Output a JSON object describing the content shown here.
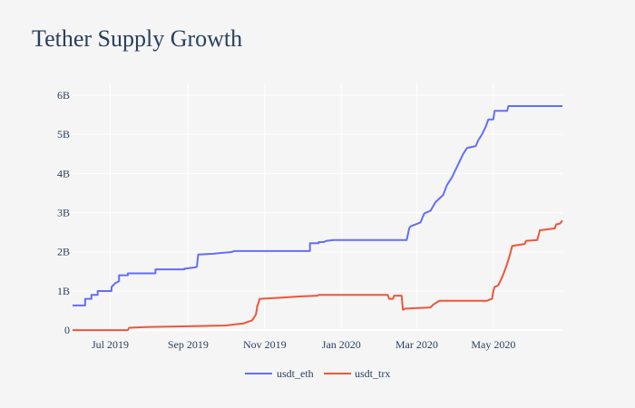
{
  "chart_data": {
    "type": "line",
    "title": "Tether Supply Growth",
    "xlabel": "",
    "ylabel": "",
    "ylim": [
      -0.02,
      6.3
    ],
    "grid": true,
    "legend_position": "bottom-center",
    "background_color": "#f5f5f5",
    "grid_color": "#ffffff",
    "text_color": "#2a3f5f",
    "y_ticks": [
      {
        "value": 0,
        "label": "0"
      },
      {
        "value": 1,
        "label": "1B"
      },
      {
        "value": 2,
        "label": "2B"
      },
      {
        "value": 3,
        "label": "3B"
      },
      {
        "value": 4,
        "label": "4B"
      },
      {
        "value": 5,
        "label": "5B"
      },
      {
        "value": 6,
        "label": "6B"
      }
    ],
    "x_domain": [
      "2019-06-01",
      "2020-06-25"
    ],
    "x_ticks": [
      {
        "date": "2019-07-01",
        "label": "Jul 2019"
      },
      {
        "date": "2019-09-01",
        "label": "Sep 2019"
      },
      {
        "date": "2019-11-01",
        "label": "Nov 2019"
      },
      {
        "date": "2020-01-01",
        "label": "Jan 2020"
      },
      {
        "date": "2020-03-01",
        "label": "Mar 2020"
      },
      {
        "date": "2020-05-01",
        "label": "May 2020"
      }
    ],
    "series": [
      {
        "name": "usdt_eth",
        "color": "#636efa",
        "points": [
          [
            "2019-06-01",
            0.63
          ],
          [
            "2019-06-11",
            0.63
          ],
          [
            "2019-06-11",
            0.8
          ],
          [
            "2019-06-16",
            0.8
          ],
          [
            "2019-06-16",
            0.9
          ],
          [
            "2019-06-21",
            0.9
          ],
          [
            "2019-06-21",
            1.0
          ],
          [
            "2019-07-02",
            1.0
          ],
          [
            "2019-07-02",
            1.1
          ],
          [
            "2019-07-05",
            1.2
          ],
          [
            "2019-07-08",
            1.25
          ],
          [
            "2019-07-08",
            1.4
          ],
          [
            "2019-07-15",
            1.4
          ],
          [
            "2019-07-15",
            1.45
          ],
          [
            "2019-08-06",
            1.45
          ],
          [
            "2019-08-06",
            1.55
          ],
          [
            "2019-08-29",
            1.55
          ],
          [
            "2019-08-29",
            1.57
          ],
          [
            "2019-09-06",
            1.6
          ],
          [
            "2019-09-08",
            1.62
          ],
          [
            "2019-09-09",
            1.93
          ],
          [
            "2019-09-21",
            1.95
          ],
          [
            "2019-09-27",
            1.97
          ],
          [
            "2019-10-05",
            1.99
          ],
          [
            "2019-10-08",
            2.02
          ],
          [
            "2019-12-07",
            2.02
          ],
          [
            "2019-12-07",
            2.22
          ],
          [
            "2019-12-14",
            2.22
          ],
          [
            "2019-12-14",
            2.25
          ],
          [
            "2019-12-18",
            2.25
          ],
          [
            "2019-12-20",
            2.28
          ],
          [
            "2019-12-26",
            2.3
          ],
          [
            "2020-02-22",
            2.3
          ],
          [
            "2020-02-24",
            2.6
          ],
          [
            "2020-02-25",
            2.65
          ],
          [
            "2020-02-29",
            2.7
          ],
          [
            "2020-03-04",
            2.75
          ],
          [
            "2020-03-07",
            2.98
          ],
          [
            "2020-03-12",
            3.05
          ],
          [
            "2020-03-16",
            3.27
          ],
          [
            "2020-03-22",
            3.45
          ],
          [
            "2020-03-25",
            3.7
          ],
          [
            "2020-03-29",
            3.9
          ],
          [
            "2020-04-01",
            4.1
          ],
          [
            "2020-04-04",
            4.3
          ],
          [
            "2020-04-07",
            4.5
          ],
          [
            "2020-04-10",
            4.65
          ],
          [
            "2020-04-17",
            4.7
          ],
          [
            "2020-04-19",
            4.85
          ],
          [
            "2020-04-22",
            5.0
          ],
          [
            "2020-04-25",
            5.2
          ],
          [
            "2020-04-27",
            5.38
          ],
          [
            "2020-05-01",
            5.38
          ],
          [
            "2020-05-02",
            5.6
          ],
          [
            "2020-05-12",
            5.6
          ],
          [
            "2020-05-13",
            5.72
          ],
          [
            "2020-06-25",
            5.72
          ]
        ]
      },
      {
        "name": "usdt_trx",
        "color": "#ef553b",
        "points": [
          [
            "2019-06-01",
            0.0
          ],
          [
            "2019-07-15",
            0.0
          ],
          [
            "2019-07-16",
            0.06
          ],
          [
            "2019-08-01",
            0.08
          ],
          [
            "2019-09-01",
            0.1
          ],
          [
            "2019-10-01",
            0.12
          ],
          [
            "2019-10-15",
            0.17
          ],
          [
            "2019-10-22",
            0.25
          ],
          [
            "2019-10-25",
            0.4
          ],
          [
            "2019-10-26",
            0.6
          ],
          [
            "2019-10-28",
            0.8
          ],
          [
            "2019-11-15",
            0.83
          ],
          [
            "2019-11-28",
            0.86
          ],
          [
            "2019-12-13",
            0.88
          ],
          [
            "2019-12-14",
            0.9
          ],
          [
            "2020-02-07",
            0.9
          ],
          [
            "2020-02-08",
            0.8
          ],
          [
            "2020-02-11",
            0.8
          ],
          [
            "2020-02-12",
            0.88
          ],
          [
            "2020-02-18",
            0.88
          ],
          [
            "2020-02-19",
            0.52
          ],
          [
            "2020-02-21",
            0.55
          ],
          [
            "2020-03-12",
            0.58
          ],
          [
            "2020-03-14",
            0.65
          ],
          [
            "2020-03-19",
            0.75
          ],
          [
            "2020-04-26",
            0.75
          ],
          [
            "2020-04-28",
            0.78
          ],
          [
            "2020-04-30",
            0.8
          ],
          [
            "2020-05-01",
            1.0
          ],
          [
            "2020-05-02",
            1.1
          ],
          [
            "2020-05-05",
            1.15
          ],
          [
            "2020-05-08",
            1.35
          ],
          [
            "2020-05-11",
            1.6
          ],
          [
            "2020-05-14",
            1.9
          ],
          [
            "2020-05-16",
            2.15
          ],
          [
            "2020-05-26",
            2.2
          ],
          [
            "2020-05-27",
            2.28
          ],
          [
            "2020-06-05",
            2.3
          ],
          [
            "2020-06-07",
            2.55
          ],
          [
            "2020-06-19",
            2.6
          ],
          [
            "2020-06-20",
            2.7
          ],
          [
            "2020-06-23",
            2.72
          ],
          [
            "2020-06-25",
            2.8
          ]
        ]
      }
    ]
  }
}
